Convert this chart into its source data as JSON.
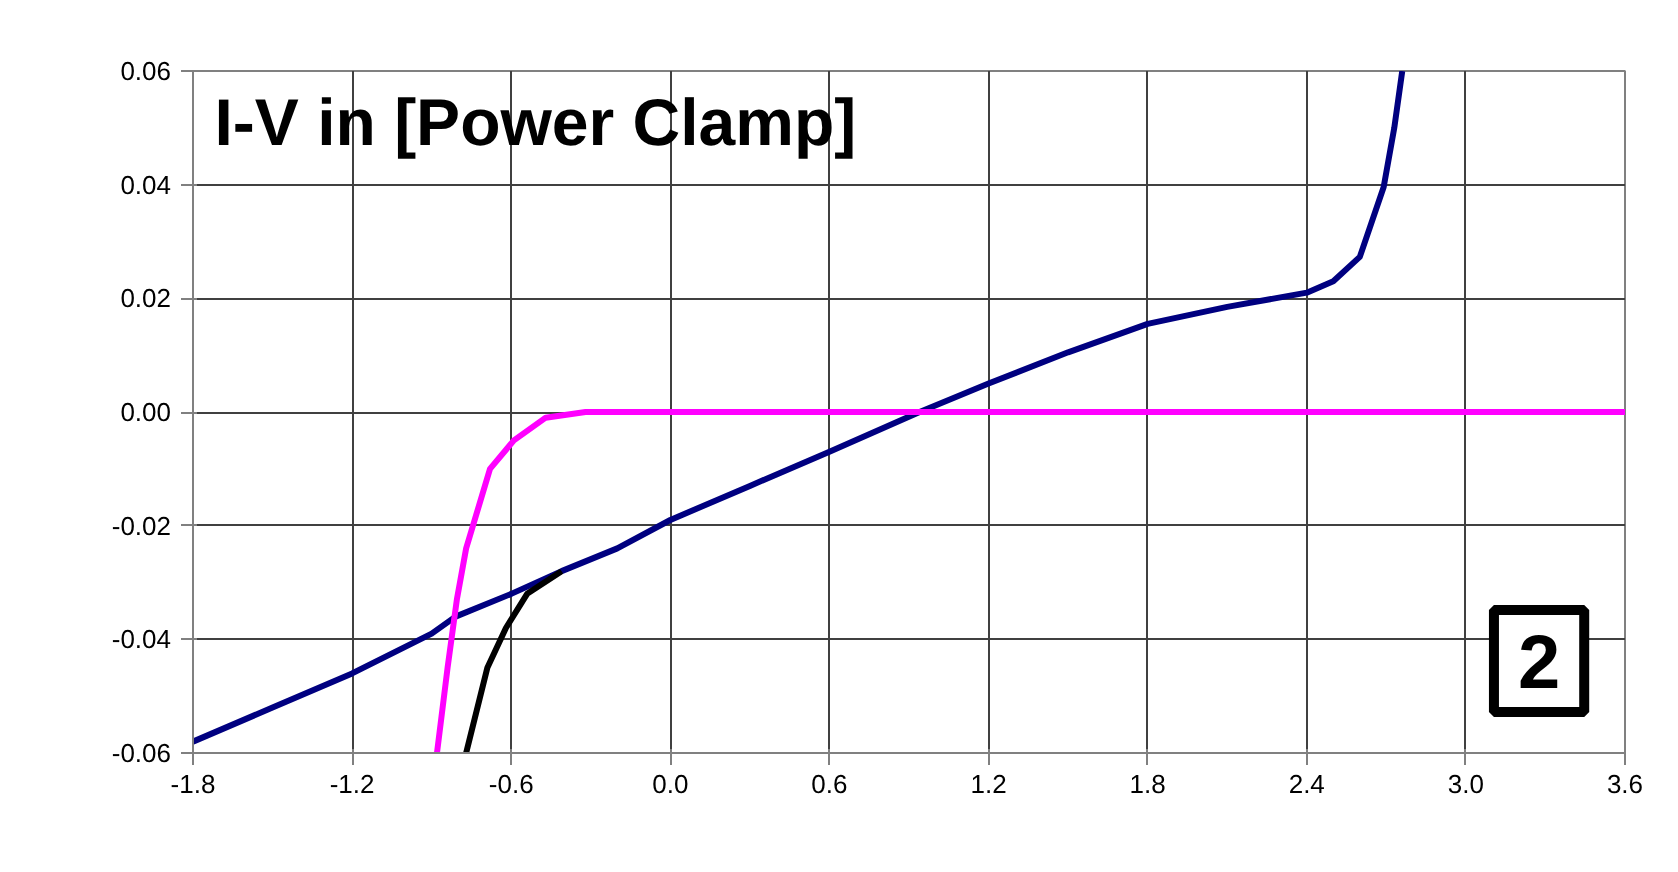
{
  "chart_data": {
    "type": "line",
    "title": "I-V in [Power Clamp]",
    "annotations": [
      "2"
    ],
    "xlim": [
      -1.8,
      3.6
    ],
    "ylim": [
      -0.06,
      0.06
    ],
    "xticks": [
      {
        "value": -1.8,
        "label": "-1.8"
      },
      {
        "value": -1.2,
        "label": "-1.2"
      },
      {
        "value": -0.6,
        "label": "-0.6"
      },
      {
        "value": 0,
        "label": "0.0"
      },
      {
        "value": 0.6,
        "label": "0.6"
      },
      {
        "value": 1.2,
        "label": "1.2"
      },
      {
        "value": 1.8,
        "label": "1.8"
      },
      {
        "value": 2.4,
        "label": "2.4"
      },
      {
        "value": 3.0,
        "label": "3.0"
      },
      {
        "value": 3.6,
        "label": "3.6"
      }
    ],
    "yticks": [
      {
        "value": -0.06,
        "label": "-0.06"
      },
      {
        "value": -0.04,
        "label": "-0.04"
      },
      {
        "value": -0.02,
        "label": "-0.02"
      },
      {
        "value": 0,
        "label": "0.00"
      },
      {
        "value": 0.02,
        "label": "0.02"
      },
      {
        "value": 0.04,
        "label": "0.04"
      },
      {
        "value": 0.06,
        "label": "0.06"
      }
    ],
    "grid": true,
    "marker": "none",
    "line_style": "solid",
    "series": [
      {
        "color": "#000080",
        "x": [
          -1.8,
          -1.5,
          -1.2,
          -0.9,
          -0.81,
          -0.6,
          -0.41,
          -0.2,
          0.0,
          0.3,
          0.6,
          0.94,
          1.2,
          1.5,
          1.8,
          2.1,
          2.4,
          2.5,
          2.6,
          2.69,
          2.73,
          2.76
        ],
        "values": [
          -0.058,
          -0.052,
          -0.046,
          -0.039,
          -0.036,
          -0.032,
          -0.028,
          -0.024,
          -0.019,
          -0.013,
          -0.007,
          0.0,
          0.005,
          0.0105,
          0.0155,
          0.0185,
          0.021,
          0.023,
          0.0273,
          0.0396,
          0.05,
          0.06
        ]
      },
      {
        "color": "#ff00ff",
        "x": [
          -0.88,
          -0.84,
          -0.805,
          -0.77,
          -0.68,
          -0.59,
          -0.47,
          -0.32,
          0.0,
          3.6
        ],
        "values": [
          -0.06,
          -0.045,
          -0.033,
          -0.024,
          -0.01,
          -0.005,
          -0.001,
          0.0,
          0.0,
          0.0
        ]
      },
      {
        "color": "#000000",
        "x": [
          -0.77,
          -0.69,
          -0.62,
          -0.54,
          -0.41
        ],
        "values": [
          -0.06,
          -0.045,
          -0.038,
          -0.032,
          -0.028
        ]
      }
    ]
  }
}
